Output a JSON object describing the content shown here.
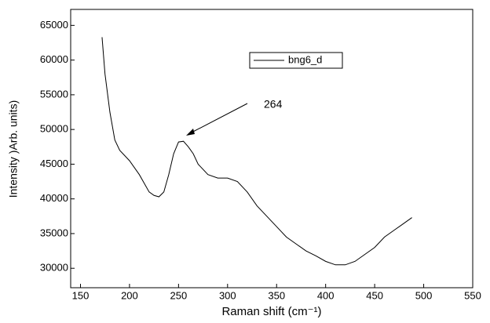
{
  "chart_data": {
    "type": "line",
    "x_label": "Raman shift (cm⁻¹)",
    "y_label": "Intensity )Arb. units)",
    "annotation": "264",
    "legend": "upper-center",
    "xlim": [
      140,
      550
    ],
    "xticks": [
      150,
      200,
      250,
      300,
      350,
      400,
      450,
      500,
      550
    ],
    "ylim": [
      27200,
      67300
    ],
    "yticks": [
      30000,
      35000,
      40000,
      45000,
      50000,
      55000,
      60000,
      65000
    ],
    "series": [
      {
        "name": "bng6_d",
        "color": "#000000",
        "x": [
          172,
          175,
          180,
          185,
          190,
          200,
          210,
          220,
          225,
          230,
          235,
          240,
          245,
          250,
          255,
          260,
          265,
          270,
          280,
          290,
          300,
          310,
          320,
          330,
          340,
          350,
          360,
          370,
          380,
          390,
          400,
          410,
          420,
          430,
          440,
          450,
          460,
          470,
          480,
          488
        ],
        "values": [
          63300,
          58000,
          52500,
          48500,
          47000,
          45500,
          43500,
          41000,
          40500,
          40300,
          41000,
          43500,
          46500,
          48200,
          48300,
          47500,
          46500,
          45000,
          43500,
          43000,
          43000,
          42500,
          41000,
          39000,
          37500,
          36000,
          34500,
          33500,
          32500,
          31800,
          31000,
          30500,
          30500,
          31000,
          32000,
          33000,
          34500,
          35500,
          36500,
          37300
        ]
      }
    ]
  }
}
